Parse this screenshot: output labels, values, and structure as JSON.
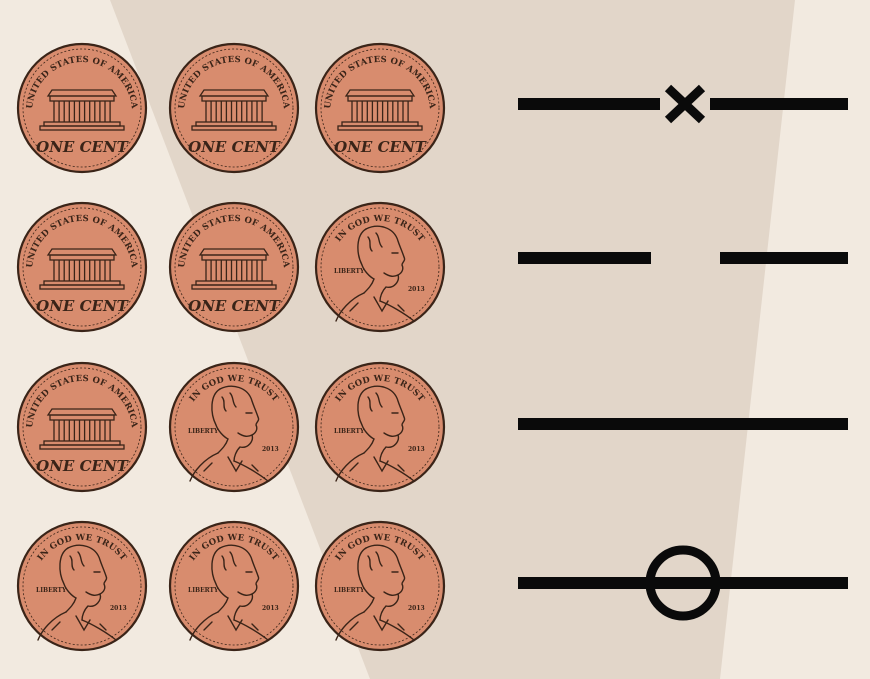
{
  "colors": {
    "background": "#f2eae0",
    "light_band": "#e2d6c9",
    "coin_fill": "#d88c6e",
    "coin_outline": "#3a2418",
    "symbol": "#0a0a0a"
  },
  "coin_text": {
    "reverse_arc": "UNITED STATES OF AMERICA",
    "reverse_denomination": "ONE CENT",
    "obverse_arc": "IN GOD WE TRUST",
    "obverse_liberty": "LIBERTY",
    "obverse_year": "2013"
  },
  "rows": [
    {
      "row": 1,
      "coins": [
        "reverse",
        "reverse",
        "reverse"
      ],
      "symbol": "cross",
      "symbol_icon": "x-mark-icon"
    },
    {
      "row": 2,
      "coins": [
        "reverse",
        "reverse",
        "obverse"
      ],
      "symbol": "broken-line",
      "symbol_icon": "broken-line-icon"
    },
    {
      "row": 3,
      "coins": [
        "reverse",
        "obverse",
        "obverse"
      ],
      "symbol": "solid-line",
      "symbol_icon": "solid-line-icon"
    },
    {
      "row": 4,
      "coins": [
        "obverse",
        "obverse",
        "obverse"
      ],
      "symbol": "circle",
      "symbol_icon": "circle-line-icon"
    }
  ]
}
